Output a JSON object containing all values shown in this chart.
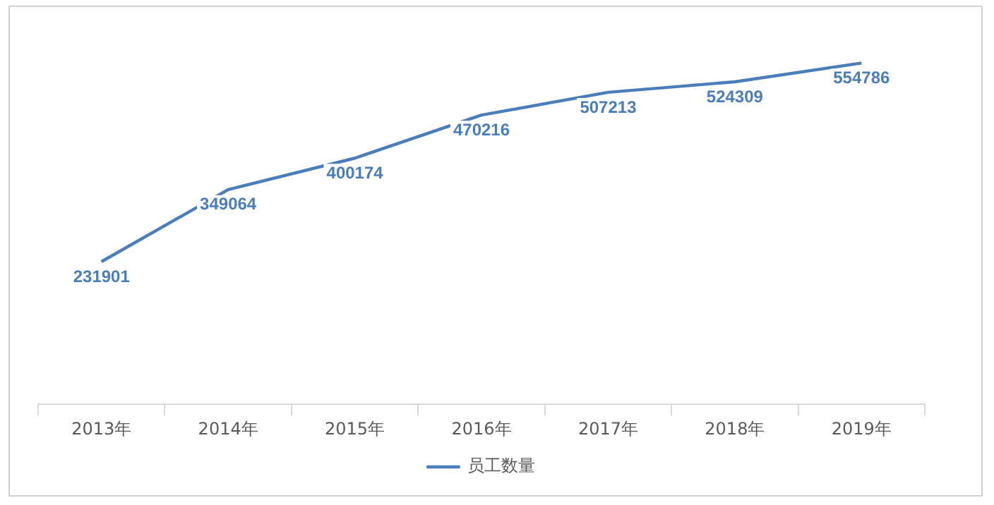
{
  "chart_data": {
    "type": "line",
    "categories": [
      "2013年",
      "2014年",
      "2015年",
      "2016年",
      "2017年",
      "2018年",
      "2019年"
    ],
    "series": [
      {
        "name": "员工数量",
        "color": "#4a7ebb",
        "values": [
          231901,
          349064,
          400174,
          470216,
          507213,
          524309,
          554786
        ]
      }
    ],
    "tick_labels": "x",
    "data_labels": true,
    "legend": "bottom"
  }
}
